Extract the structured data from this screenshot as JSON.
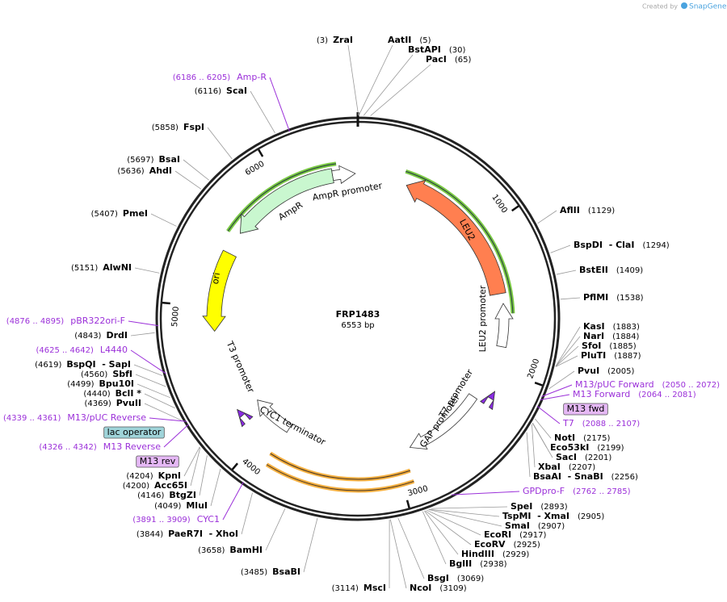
{
  "brand": "Created by",
  "brand_name": "SnapGene",
  "plasmid": {
    "name": "FRP1483",
    "size": {
      "value": 6553,
      "label": "6553 bp"
    }
  },
  "ticks": [
    1000,
    2000,
    3000,
    4000,
    5000,
    6000
  ],
  "enzymes": [
    {
      "name": "ZraI",
      "site": {
        "value": 3,
        "label": "(3)"
      }
    },
    {
      "name": "AatII",
      "site": {
        "value": 5,
        "label": "(5)"
      }
    },
    {
      "name": "BstAPI",
      "site": {
        "value": 30,
        "label": "(30)"
      }
    },
    {
      "name": "PacI",
      "site": {
        "value": 65,
        "label": "(65)"
      }
    },
    {
      "name": "AflII",
      "site": {
        "value": 1129,
        "label": "(1129)"
      }
    },
    {
      "name": "BspDI  - ClaI",
      "site": {
        "value": 1294,
        "label": "(1294)"
      }
    },
    {
      "name": "BstEII",
      "site": {
        "value": 1409,
        "label": "(1409)"
      }
    },
    {
      "name": "PflMI",
      "site": {
        "value": 1538,
        "label": "(1538)"
      }
    },
    {
      "name": "KasI",
      "site": {
        "value": 1883,
        "label": "(1883)"
      }
    },
    {
      "name": "NarI",
      "site": {
        "value": 1884,
        "label": "(1884)"
      }
    },
    {
      "name": "SfoI",
      "site": {
        "value": 1885,
        "label": "(1885)"
      }
    },
    {
      "name": "PluTI",
      "site": {
        "value": 1887,
        "label": "(1887)"
      }
    },
    {
      "name": "PvuI",
      "site": {
        "value": 2005,
        "label": "(2005)"
      }
    },
    {
      "name": "NotI",
      "site": {
        "value": 2175,
        "label": "(2175)"
      }
    },
    {
      "name": "Eco53kI",
      "site": {
        "value": 2199,
        "label": "(2199)"
      }
    },
    {
      "name": "SacI",
      "site": {
        "value": 2201,
        "label": "(2201)"
      }
    },
    {
      "name": "XbaI",
      "site": {
        "value": 2207,
        "label": "(2207)"
      }
    },
    {
      "name": "BsaAI  - SnaBI",
      "site": {
        "value": 2256,
        "label": "(2256)"
      }
    },
    {
      "name": "SpeI",
      "site": {
        "value": 2893,
        "label": "(2893)"
      }
    },
    {
      "name": "TspMI  - XmaI",
      "site": {
        "value": 2905,
        "label": "(2905)"
      }
    },
    {
      "name": "SmaI",
      "site": {
        "value": 2907,
        "label": "(2907)"
      }
    },
    {
      "name": "EcoRI",
      "site": {
        "value": 2917,
        "label": "(2917)"
      }
    },
    {
      "name": "EcoRV",
      "site": {
        "value": 2925,
        "label": "(2925)"
      }
    },
    {
      "name": "HindIII",
      "site": {
        "value": 2929,
        "label": "(2929)"
      }
    },
    {
      "name": "BglII",
      "site": {
        "value": 2938,
        "label": "(2938)"
      }
    },
    {
      "name": "BsgI",
      "site": {
        "value": 3069,
        "label": "(3069)"
      }
    },
    {
      "name": "NcoI",
      "site": {
        "value": 3109,
        "label": "(3109)"
      }
    },
    {
      "name": "MscI",
      "site": {
        "value": 3114,
        "label": "(3114)"
      }
    },
    {
      "name": "BsaBI",
      "site": {
        "value": 3485,
        "label": "(3485)"
      }
    },
    {
      "name": "BamHI",
      "site": {
        "value": 3658,
        "label": "(3658)"
      }
    },
    {
      "name": "PaeR7I  - XhoI",
      "site": {
        "value": 3844,
        "label": "(3844)"
      }
    },
    {
      "name": "MluI",
      "site": {
        "value": 4049,
        "label": "(4049)"
      }
    },
    {
      "name": "BtgZI",
      "site": {
        "value": 4146,
        "label": "(4146)"
      }
    },
    {
      "name": "Acc65I",
      "site": {
        "value": 4200,
        "label": "(4200)"
      }
    },
    {
      "name": "KpnI",
      "site": {
        "value": 4204,
        "label": "(4204)"
      }
    },
    {
      "name": "PvuII",
      "site": {
        "value": 4369,
        "label": "(4369)"
      }
    },
    {
      "name": "BclI *",
      "site": {
        "value": 4440,
        "label": "(4440)"
      }
    },
    {
      "name": "Bpu10I",
      "site": {
        "value": 4499,
        "label": "(4499)"
      }
    },
    {
      "name": "SbfI",
      "site": {
        "value": 4560,
        "label": "(4560)"
      }
    },
    {
      "name": "BspQI  - SapI",
      "site": {
        "value": 4619,
        "label": "(4619)"
      }
    },
    {
      "name": "DrdI",
      "site": {
        "value": 4843,
        "label": "(4843)"
      }
    },
    {
      "name": "AlwNI",
      "site": {
        "value": 5151,
        "label": "(5151)"
      }
    },
    {
      "name": "PmeI",
      "site": {
        "value": 5407,
        "label": "(5407)"
      }
    },
    {
      "name": "AhdI",
      "site": {
        "value": 5636,
        "label": "(5636)"
      }
    },
    {
      "name": "BsaI",
      "site": {
        "value": 5697,
        "label": "(5697)"
      }
    },
    {
      "name": "FspI",
      "site": {
        "value": 5858,
        "label": "(5858)"
      }
    },
    {
      "name": "ScaI",
      "site": {
        "value": 6116,
        "label": "(6116)"
      }
    }
  ],
  "primers": [
    {
      "name": "Amp-R",
      "range": "(6186 .. 6205)"
    },
    {
      "name": "pBR322ori-F",
      "range": "(4876 .. 4895)"
    },
    {
      "name": "L4440",
      "range": "(4625 .. 4642)"
    },
    {
      "name": "M13/pUC Reverse",
      "range": "(4339 .. 4361)"
    },
    {
      "name": "M13 Reverse",
      "range": "(4326 .. 4342)"
    },
    {
      "name": "CYC1",
      "range": "(3891 .. 3909)"
    },
    {
      "name": "M13/pUC Forward",
      "range": "(2050 .. 2072)"
    },
    {
      "name": "M13 Forward",
      "range": "(2064 .. 2081)"
    },
    {
      "name": "T7",
      "range": "(2088 .. 2107)"
    },
    {
      "name": "GPDpro-F",
      "range": "(2762 .. 2785)"
    }
  ],
  "boxed_labels": [
    "M13 fwd",
    "lac operator",
    "M13 rev"
  ],
  "features": [
    "AmpR",
    "AmpR promoter",
    "ori",
    "LEU2",
    "LEU2 promoter",
    "T7 promoter",
    "GAP promoter",
    "CYC1 terminator",
    "T3 promoter"
  ]
}
